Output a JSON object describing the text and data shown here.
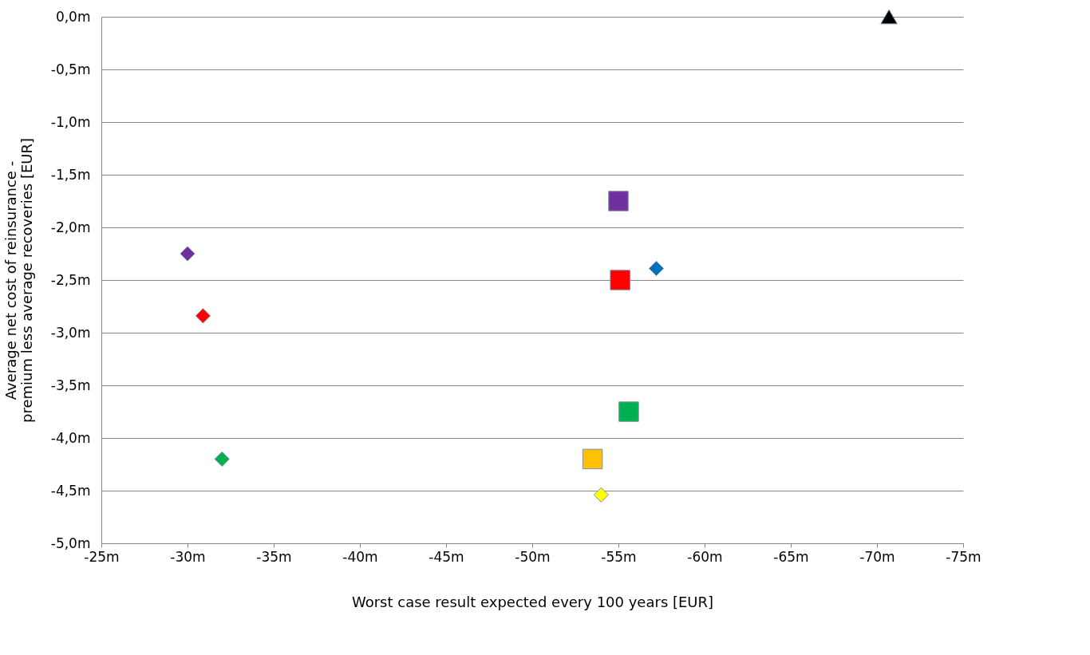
{
  "chart_data": {
    "type": "scatter",
    "xlabel": "Worst case result expected every 100 years [EUR]",
    "ylabel": "Average net cost of reinsurance -\npremium less average recoveries [EUR]",
    "xlim": [
      -25,
      -75
    ],
    "ylim": [
      -5,
      0
    ],
    "xticks": [
      {
        "value": -25,
        "label": "-25m"
      },
      {
        "value": -30,
        "label": "-30m"
      },
      {
        "value": -35,
        "label": "-35m"
      },
      {
        "value": -40,
        "label": "-40m"
      },
      {
        "value": -45,
        "label": "-45m"
      },
      {
        "value": -50,
        "label": "-50m"
      },
      {
        "value": -55,
        "label": "-55m"
      },
      {
        "value": -60,
        "label": "-60m"
      },
      {
        "value": -65,
        "label": "-65m"
      },
      {
        "value": -70,
        "label": "-70m"
      },
      {
        "value": -75,
        "label": "-75m"
      }
    ],
    "yticks": [
      {
        "value": 0,
        "label": "0,0m"
      },
      {
        "value": -0.5,
        "label": "-0,5m"
      },
      {
        "value": -1,
        "label": "-1,0m"
      },
      {
        "value": -1.5,
        "label": "-1,5m"
      },
      {
        "value": -2,
        "label": "-2,0m"
      },
      {
        "value": -2.5,
        "label": "-2,5m"
      },
      {
        "value": -3,
        "label": "-3,0m"
      },
      {
        "value": -3.5,
        "label": "-3,5m"
      },
      {
        "value": -4,
        "label": "-4,0m"
      },
      {
        "value": -4.5,
        "label": "-4,5m"
      },
      {
        "value": -5,
        "label": "-5,0m"
      }
    ],
    "grid": "y",
    "series": [
      {
        "color": "#000000",
        "marker": "triangle",
        "x": [
          -70.7
        ],
        "values": [
          0
        ]
      },
      {
        "color": "#7030a0",
        "marker": "square",
        "x": [
          -55.0
        ],
        "values": [
          -1.75
        ]
      },
      {
        "color": "#0070c0",
        "marker": "diamond",
        "x": [
          -57.2
        ],
        "values": [
          -2.39
        ]
      },
      {
        "color": "#ff0000",
        "marker": "square",
        "x": [
          -55.1
        ],
        "values": [
          -2.5
        ]
      },
      {
        "color": "#00b050",
        "marker": "square",
        "x": [
          -55.6
        ],
        "values": [
          -3.75
        ]
      },
      {
        "color": "#ffc000",
        "marker": "square",
        "x": [
          -53.5
        ],
        "values": [
          -4.2
        ]
      },
      {
        "color": "#ffff00",
        "marker": "diamond",
        "x": [
          -54.0
        ],
        "values": [
          -4.54
        ]
      },
      {
        "color": "#7030a0",
        "marker": "diamond",
        "x": [
          -30.0
        ],
        "values": [
          -2.25
        ]
      },
      {
        "color": "#ff0000",
        "marker": "diamond",
        "x": [
          -30.9
        ],
        "values": [
          -2.84
        ]
      },
      {
        "color": "#00b050",
        "marker": "diamond",
        "x": [
          -32.0
        ],
        "values": [
          -4.2
        ]
      }
    ]
  }
}
